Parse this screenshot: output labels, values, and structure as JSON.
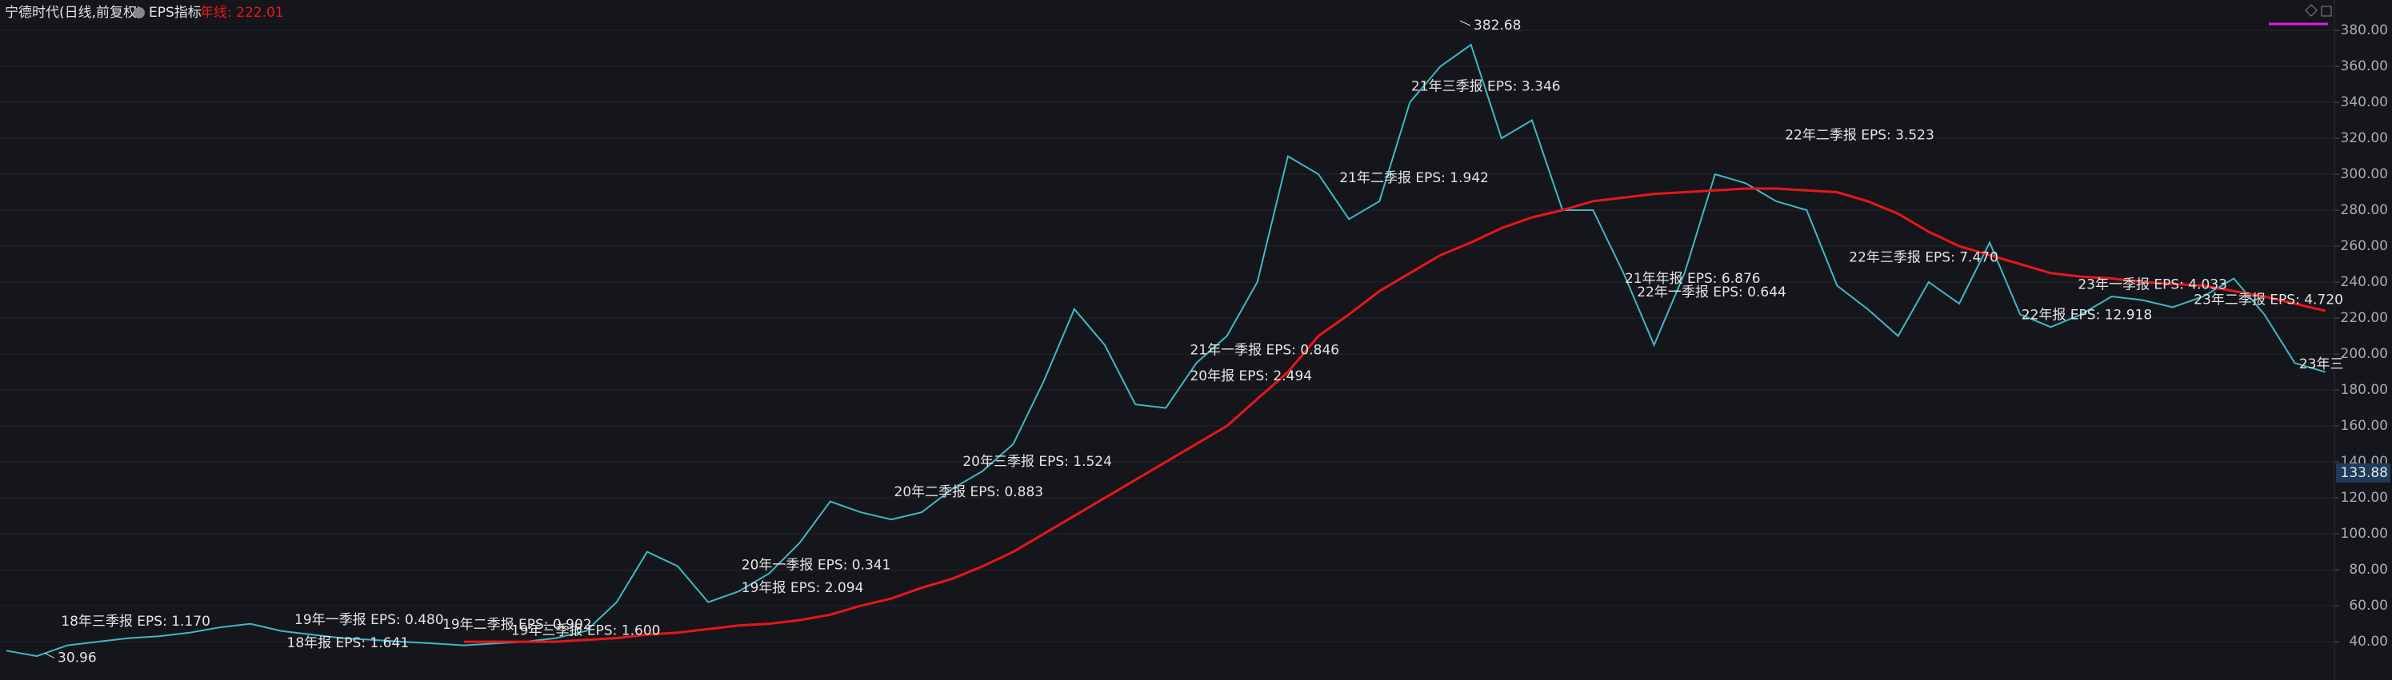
{
  "chart_data": {
    "type": "line",
    "title": "宁德时代(日线,前复权)",
    "indicator": "EPS指标",
    "ma_label": "年线: 222.01",
    "ylim": [
      18.7,
      396.9
    ],
    "yticks": [
      {
        "value": 40,
        "label": "40.00"
      },
      {
        "value": 60,
        "label": "60.00"
      },
      {
        "value": 80,
        "label": "80.00"
      },
      {
        "value": 100,
        "label": "100.00"
      },
      {
        "value": 120,
        "label": "120.00"
      },
      {
        "value": 140,
        "label": "140.00"
      },
      {
        "value": 160,
        "label": "160.00"
      },
      {
        "value": 180,
        "label": "180.00"
      },
      {
        "value": 200,
        "label": "200.00"
      },
      {
        "value": 220,
        "label": "220.00"
      },
      {
        "value": 240,
        "label": "240.00"
      },
      {
        "value": 260,
        "label": "260.00"
      },
      {
        "value": 280,
        "label": "280.00"
      },
      {
        "value": 300,
        "label": "300.00"
      },
      {
        "value": 320,
        "label": "320.00"
      },
      {
        "value": 340,
        "label": "340.00"
      },
      {
        "value": 360,
        "label": "360.00"
      },
      {
        "value": 380,
        "label": "380.00"
      }
    ],
    "grid": true,
    "series": [
      {
        "color": "#3fb8c4",
        "values": [
          35,
          32,
          38,
          40,
          42,
          43,
          45,
          48,
          50,
          46,
          44,
          42,
          41,
          40,
          39,
          38,
          39,
          40,
          42,
          46,
          62,
          90,
          82,
          62,
          68,
          78,
          95,
          118,
          112,
          108,
          112,
          125,
          135,
          150,
          185,
          225,
          205,
          172,
          170,
          195,
          210,
          240,
          310,
          300,
          275,
          285,
          340,
          360,
          372,
          320,
          330,
          280,
          280,
          245,
          205,
          245,
          300,
          295,
          285,
          280,
          238,
          225,
          210,
          240,
          228,
          262,
          222,
          215,
          222,
          232,
          230,
          226,
          232,
          242,
          222,
          195,
          190
        ]
      },
      {
        "color": "#e8161c",
        "values": [
          null,
          null,
          null,
          null,
          null,
          null,
          null,
          null,
          null,
          null,
          null,
          null,
          null,
          null,
          null,
          40,
          40,
          40,
          40,
          41,
          42,
          44,
          45,
          47,
          49,
          50,
          52,
          55,
          60,
          64,
          70,
          75,
          82,
          90,
          100,
          110,
          120,
          130,
          140,
          150,
          160,
          175,
          190,
          210,
          222,
          235,
          245,
          255,
          262,
          270,
          276,
          280,
          285,
          287,
          289,
          290,
          291,
          292,
          292,
          291,
          290,
          285,
          278,
          268,
          260,
          255,
          250,
          245,
          243,
          242,
          240,
          239,
          238,
          235,
          232,
          228,
          224
        ]
      }
    ],
    "max_label": 382.68,
    "min_label": 30.96,
    "price_label": 133.88,
    "annotations": [
      "18年三季报 EPS: 1.170",
      "19年一季报 EPS: 0.480",
      "18年报 EPS: 1.641",
      "19年二季报 EPS: 0.902",
      "19年三季报 EPS: 1.600",
      "20年一季报 EPS: 0.341",
      "19年报 EPS: 2.094",
      "20年二季报 EPS: 0.883",
      "20年三季报 EPS: 1.524",
      "21年一季报 EPS: 0.846",
      "20年报 EPS: 2.494",
      "21年二季报 EPS: 1.942",
      "21年三季报 EPS: 3.346",
      "22年二季报 EPS: 3.523",
      "21年年报 EPS: 6.876",
      "22年一季报 EPS: 0.644",
      "22年三季报 EPS: 7.470",
      "22年报 EPS: 12.918",
      "23年一季报 EPS: 4.033",
      "23年二季报 EPS: 4.720",
      "23年三"
    ]
  }
}
